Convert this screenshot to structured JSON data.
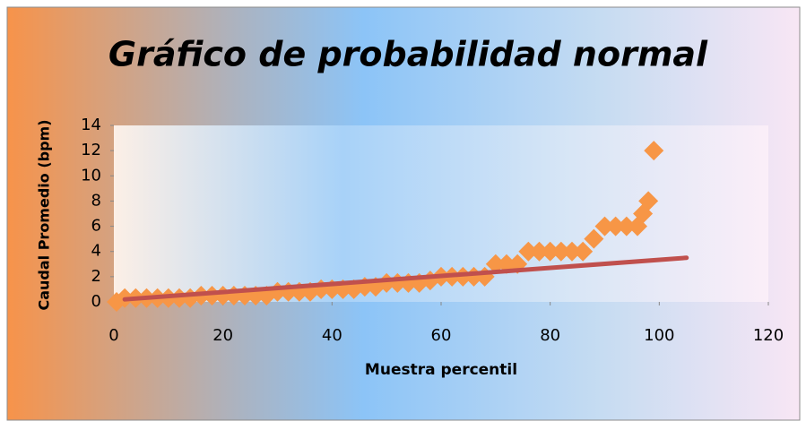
{
  "chart_data": {
    "type": "scatter",
    "title": "Gráfico de probabilidad normal",
    "xlabel": "Muestra percentil",
    "ylabel": "Caudal Promedio (bpm)",
    "x": [
      0.5,
      2,
      4,
      6,
      8,
      10,
      12,
      14,
      16,
      18,
      20,
      22,
      24,
      26,
      28,
      30,
      32,
      34,
      36,
      38,
      40,
      42,
      44,
      46,
      48,
      50,
      52,
      54,
      56,
      58,
      60,
      62,
      64,
      66,
      68,
      70,
      72,
      74,
      76,
      78,
      80,
      82,
      84,
      86,
      88,
      90,
      92,
      94,
      96,
      97,
      98,
      99
    ],
    "values": [
      0,
      0.3,
      0.3,
      0.3,
      0.3,
      0.3,
      0.3,
      0.3,
      0.5,
      0.5,
      0.5,
      0.5,
      0.5,
      0.5,
      0.5,
      0.8,
      0.8,
      0.8,
      0.8,
      1,
      1,
      1,
      1,
      1.2,
      1.2,
      1.5,
      1.5,
      1.5,
      1.5,
      1.7,
      2,
      2,
      2,
      2,
      2,
      3,
      3,
      3,
      4,
      4,
      4,
      4,
      4,
      4,
      5,
      6,
      6,
      6,
      6,
      7,
      8,
      12
    ],
    "color": "#f79646",
    "trendline": {
      "x": [
        2,
        105
      ],
      "values": [
        0.2,
        3.5
      ],
      "color": "#c0504d"
    },
    "xlim": [
      0,
      120
    ],
    "xticks": [
      0,
      20,
      40,
      60,
      80,
      100,
      120
    ],
    "ylim": [
      0,
      14
    ],
    "yticks": [
      0,
      2,
      4,
      6,
      8,
      10,
      12,
      14
    ]
  }
}
